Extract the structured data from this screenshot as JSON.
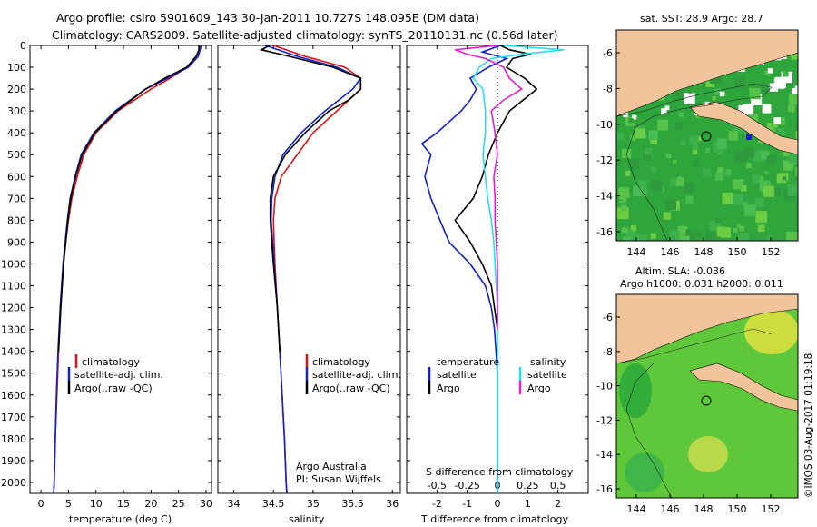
{
  "header": {
    "line1": "Argo profile: csiro 5901609_143 30-Jan-2011 10.727S 148.095E (DM data)",
    "line2": "Climatology: CARS2009. Satellite-adjusted climatology: synTS_20110131.nc (0.56d later)"
  },
  "depth_ticks": [
    "0",
    "100",
    "200",
    "300",
    "400",
    "500",
    "600",
    "700",
    "800",
    "900",
    "1000",
    "1100",
    "1200",
    "1300",
    "1400",
    "1500",
    "1600",
    "1700",
    "1800",
    "1900",
    "2000"
  ],
  "legend": {
    "climatology": "climatology",
    "satellite": "satellite-adj. clim.",
    "argo": "Argo(..raw -QC)"
  },
  "panel3_legend": {
    "temperature": "temperature",
    "salinity": "salinity",
    "satellite": "satellite",
    "argo": "Argo"
  },
  "credit": {
    "line1": "Argo Australia",
    "line2": "PI: Susan Wijffels"
  },
  "map_top": {
    "title": "sat. SST: 28.9 Argo: 28.7",
    "lat_ticks": [
      "-6",
      "-8",
      "-10",
      "-12",
      "-14",
      "-16"
    ],
    "lon_ticks": [
      "144",
      "146",
      "148",
      "150",
      "152"
    ]
  },
  "map_bottom": {
    "title1": "Altim. SLA: -0.036",
    "title2": "Argo h1000: 0.031 h2000: 0.011",
    "lat_ticks": [
      "-6",
      "-8",
      "-10",
      "-12",
      "-14",
      "-16"
    ],
    "lon_ticks": [
      "144",
      "146",
      "148",
      "150",
      "152"
    ]
  },
  "side_label": "©IMOS 03-Aug-2017 01:19:18",
  "colors": {
    "climatology": "#e01010",
    "satellite": "#1020d0",
    "argo": "#000000",
    "sat_salinity": "#22e0f0",
    "argo_salinity": "#e020d0",
    "land": "#f2c49c"
  },
  "chart_data": [
    {
      "type": "line",
      "title": "",
      "xlabel": "temperature (deg C)",
      "ylabel": "",
      "xlim": [
        -2,
        31
      ],
      "ylim": [
        2050,
        0
      ],
      "xticks": [
        0,
        5,
        10,
        15,
        20,
        25,
        30
      ],
      "series": [
        {
          "name": "climatology",
          "depth": [
            0,
            50,
            100,
            150,
            200,
            300,
            400,
            500,
            600,
            700,
            800,
            900,
            1000,
            1200,
            1400,
            1600,
            1800,
            2000,
            2050
          ],
          "values": [
            29.0,
            28.3,
            26.5,
            23.5,
            20.0,
            14.0,
            10.0,
            7.8,
            6.6,
            5.6,
            5.0,
            4.5,
            4.1,
            3.6,
            3.2,
            2.9,
            2.6,
            2.4,
            2.3
          ]
        },
        {
          "name": "satellite-adj. clim.",
          "depth": [
            0,
            50,
            100,
            150,
            200,
            300,
            400,
            500,
            600,
            700,
            800,
            900,
            1000,
            1200,
            1400,
            1600,
            1800,
            2000,
            2050
          ],
          "values": [
            29.1,
            28.6,
            26.8,
            23.0,
            19.0,
            13.5,
            9.6,
            7.3,
            6.2,
            5.3,
            4.8,
            4.4,
            4.0,
            3.5,
            3.1,
            2.8,
            2.6,
            2.4,
            2.3
          ]
        },
        {
          "name": "Argo(..raw -QC)",
          "depth": [
            0,
            20,
            50,
            100,
            150,
            200,
            300,
            400,
            500,
            600,
            700,
            800,
            900,
            1000,
            1200,
            1400
          ],
          "values": [
            28.7,
            28.7,
            28.2,
            26.5,
            22.5,
            19.0,
            13.8,
            9.8,
            7.5,
            6.3,
            5.4,
            4.9,
            4.5,
            4.1,
            3.6,
            3.2
          ]
        }
      ]
    },
    {
      "type": "line",
      "title": "",
      "xlabel": "salinity",
      "ylabel": "",
      "xlim": [
        33.8,
        36.1
      ],
      "ylim": [
        2050,
        0
      ],
      "xticks": [
        "34",
        "34.5",
        "35",
        "35.5",
        "36"
      ],
      "series": [
        {
          "name": "climatology",
          "depth": [
            0,
            50,
            100,
            150,
            200,
            300,
            400,
            500,
            600,
            700,
            800,
            900,
            1000,
            1200,
            1400,
            1600,
            1800,
            2000,
            2050
          ],
          "values": [
            34.5,
            34.9,
            35.4,
            35.6,
            35.6,
            35.3,
            35.0,
            34.8,
            34.6,
            34.52,
            34.5,
            34.51,
            34.52,
            34.55,
            34.58,
            34.61,
            34.64,
            34.66,
            34.67
          ]
        },
        {
          "name": "satellite-adj. clim.",
          "depth": [
            0,
            50,
            100,
            150,
            200,
            300,
            400,
            500,
            600,
            700,
            800,
            900,
            1000,
            1200,
            1400,
            1600,
            1800,
            2000,
            2050
          ],
          "values": [
            34.4,
            34.8,
            35.3,
            35.6,
            35.5,
            35.15,
            34.85,
            34.62,
            34.52,
            34.48,
            34.47,
            34.49,
            34.51,
            34.55,
            34.58,
            34.61,
            34.64,
            34.66,
            34.67
          ]
        },
        {
          "name": "Argo(..raw -QC)",
          "depth": [
            0,
            20,
            50,
            100,
            150,
            200,
            250,
            300,
            400,
            500,
            600,
            700,
            800,
            900,
            1000,
            1200,
            1400
          ],
          "values": [
            34.45,
            34.35,
            34.7,
            35.25,
            35.6,
            35.6,
            35.45,
            35.2,
            34.9,
            34.65,
            34.5,
            34.46,
            34.46,
            34.48,
            34.5,
            34.55,
            34.58
          ]
        }
      ]
    },
    {
      "type": "line",
      "title": "",
      "xlabel": "T difference from climatology",
      "ylabel": "",
      "x2label": "S difference from climatology",
      "xlim": [
        -3,
        3
      ],
      "ylim": [
        2050,
        0
      ],
      "xticks": [
        "-2",
        "-1",
        "0",
        "1",
        "2"
      ],
      "x2ticks": [
        "-0.5",
        "-0.25",
        "0",
        "0.25",
        "0.5"
      ],
      "series": [
        {
          "name": "temperature satellite",
          "depth": [
            0,
            30,
            60,
            100,
            150,
            200,
            250,
            300,
            350,
            400,
            450,
            500,
            550,
            600,
            700,
            800,
            900,
            1000,
            1100,
            1200,
            1300,
            1500,
            2050
          ],
          "values": [
            0.1,
            -0.5,
            0.3,
            -0.3,
            -0.9,
            -0.7,
            -0.9,
            -1.2,
            -1.6,
            -2.0,
            -2.5,
            -2.2,
            -2.3,
            -2.4,
            -2.2,
            -1.9,
            -1.6,
            -0.9,
            -0.4,
            -0.2,
            -0.1,
            0,
            0
          ]
        },
        {
          "name": "temperature Argo",
          "depth": [
            0,
            20,
            40,
            60,
            100,
            150,
            200,
            300,
            400,
            500,
            600,
            700,
            800,
            900,
            1000,
            1100,
            1200,
            1300
          ],
          "values": [
            0.1,
            0.4,
            1.1,
            0.5,
            0.3,
            0.9,
            1.3,
            0.4,
            0,
            -0.3,
            -0.5,
            -0.8,
            -1.4,
            -0.9,
            -0.5,
            -0.2,
            -0.1,
            0
          ]
        },
        {
          "name": "salinity satellite",
          "depth": [
            0,
            20,
            40,
            60,
            100,
            150,
            200,
            300,
            400,
            500,
            600,
            700,
            800,
            900,
            1000,
            1200,
            1400,
            1600,
            1800,
            2000,
            2050
          ],
          "values": [
            0.05,
            0.55,
            0.2,
            -0.05,
            -0.15,
            -0.2,
            -0.12,
            -0.1,
            -0.1,
            -0.12,
            -0.1,
            -0.08,
            -0.05,
            -0.03,
            -0.02,
            0,
            0,
            0,
            0,
            0,
            0
          ]
        },
        {
          "name": "salinity Argo",
          "depth": [
            0,
            20,
            40,
            60,
            100,
            150,
            200,
            250,
            300,
            400,
            500,
            600,
            700,
            800,
            900,
            1000,
            1200,
            1300
          ],
          "values": [
            0.0,
            -0.35,
            -0.25,
            -0.1,
            0.05,
            0.1,
            0.2,
            0.05,
            -0.05,
            -0.02,
            0,
            -0.03,
            -0.02,
            -0.02,
            -0.01,
            0,
            0,
            0
          ]
        }
      ]
    }
  ]
}
